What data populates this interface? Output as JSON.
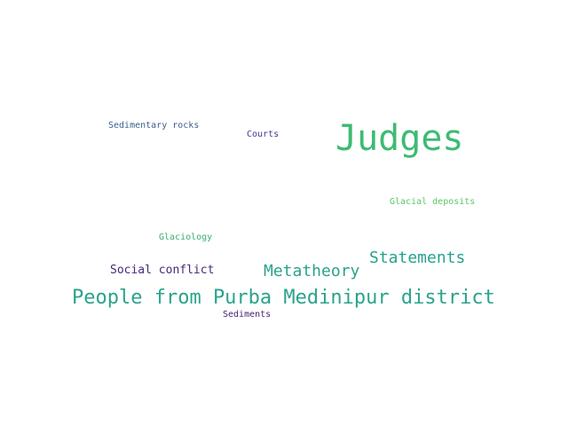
{
  "words": [
    {
      "text": "Judges",
      "color": "#3dbb73"
    },
    {
      "text": "Sedimentary rocks",
      "color": "#3b5f8f"
    },
    {
      "text": "Courts",
      "color": "#47388f"
    },
    {
      "text": "Glacial deposits",
      "color": "#5cc763"
    },
    {
      "text": "Glaciology",
      "color": "#3cac6c"
    },
    {
      "text": "Statements",
      "color": "#26a28c"
    },
    {
      "text": "Social conflict",
      "color": "#47287a"
    },
    {
      "text": "Metatheory",
      "color": "#2ca38a"
    },
    {
      "text": "People from Purba Medinipur district",
      "color": "#2ba38d"
    },
    {
      "text": "Sediments",
      "color": "#48246f"
    }
  ]
}
